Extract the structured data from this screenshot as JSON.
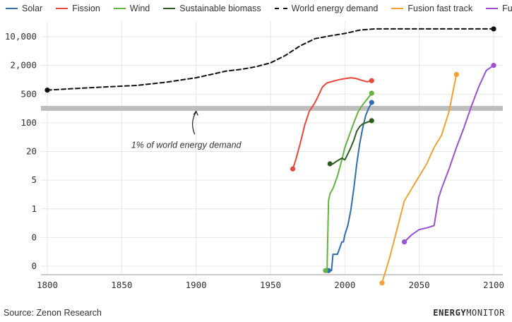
{
  "chart_data": {
    "type": "line",
    "title": "",
    "xlabel": "",
    "ylabel": "",
    "x_ticks": [
      "1800",
      "1850",
      "1900",
      "1950",
      "2000",
      "2050",
      "2100"
    ],
    "xlim": [
      1800,
      2102
    ],
    "y_ticks": [
      "10,000",
      "2,000",
      "500",
      "100",
      "20",
      "5",
      "1",
      "0",
      "0"
    ],
    "y_scale": "log, one labelled step per tick (10,000 / 2,000 / 500 / 100 / 20 / 5 / 1 / 0.2 / 0.04, shown as 0)",
    "grid": "vertical and horizontal light gray gridlines",
    "legend_position": "top",
    "series": [
      {
        "name": "Solar",
        "color": "#2f6db0",
        "dashed": false,
        "marker_last": true,
        "x": [
          1989,
          1990,
          1991,
          1992,
          1995,
          1998,
          1999,
          2000,
          2002,
          2004,
          2006,
          2008,
          2010,
          2012,
          2014,
          2016,
          2018
        ],
        "y": [
          0.02,
          0.02,
          0.02,
          0.05,
          0.05,
          0.1,
          0.1,
          0.15,
          0.25,
          0.6,
          2,
          8,
          25,
          60,
          120,
          180,
          250
        ]
      },
      {
        "name": "Fission",
        "color": "#e8473a",
        "dashed": false,
        "marker_last": true,
        "x": [
          1965,
          1967,
          1970,
          1973,
          1976,
          1980,
          1983,
          1985,
          1988,
          1992,
          1996,
          2000,
          2004,
          2008,
          2012,
          2015,
          2018
        ],
        "y": [
          6,
          10,
          25,
          70,
          150,
          250,
          420,
          600,
          750,
          820,
          900,
          950,
          1000,
          950,
          850,
          800,
          850
        ]
      },
      {
        "name": "Wind",
        "color": "#64b33f",
        "dashed": false,
        "marker_last": true,
        "x": [
          1987,
          1988,
          1989,
          1990,
          1992,
          1995,
          1998,
          2000,
          2003,
          2006,
          2009,
          2012,
          2015,
          2018
        ],
        "y": [
          0.02,
          0.02,
          1,
          1.5,
          2,
          4,
          10,
          20,
          40,
          80,
          150,
          220,
          300,
          420
        ]
      },
      {
        "name": "Sustainable biomass",
        "color": "#2d5d1e",
        "dashed": false,
        "marker_last": false,
        "x": [
          1990,
          1992,
          1994,
          1996,
          1998,
          2000,
          2002,
          2004,
          2006,
          2008,
          2010,
          2012,
          2014,
          2016,
          2018
        ],
        "y": [
          8,
          8,
          9,
          10,
          11,
          10,
          14,
          20,
          30,
          50,
          65,
          75,
          80,
          85,
          90
        ]
      },
      {
        "name": "World energy demand",
        "color": "#111111",
        "dashed": true,
        "marker_last": true,
        "x": [
          1800,
          1820,
          1840,
          1860,
          1880,
          1900,
          1910,
          1920,
          1930,
          1940,
          1950,
          1960,
          1970,
          1980,
          1990,
          2000,
          2010,
          2020,
          2050,
          2100
        ],
        "y": [
          500,
          550,
          600,
          650,
          780,
          1000,
          1200,
          1450,
          1600,
          1850,
          2300,
          3500,
          6000,
          9000,
          10500,
          12000,
          14500,
          15500,
          15500,
          15500
        ]
      },
      {
        "name": "Fusion fast track",
        "color": "#f5a033",
        "dashed": false,
        "marker_last": true,
        "x": [
          2025,
          2030,
          2035,
          2040,
          2045,
          2050,
          2055,
          2060,
          2065,
          2070,
          2075
        ],
        "y": [
          0.01,
          0.04,
          0.2,
          1,
          2,
          4,
          8,
          20,
          40,
          150,
          1200
        ]
      },
      {
        "name": "Fusion",
        "color": "#9b4fd1",
        "dashed": false,
        "marker_last": true,
        "x": [
          2040,
          2045,
          2050,
          2055,
          2060,
          2063,
          2065,
          2070,
          2075,
          2080,
          2085,
          2090,
          2095,
          2100
        ],
        "y": [
          0.1,
          0.15,
          0.2,
          0.22,
          0.25,
          1.2,
          2,
          6,
          20,
          60,
          200,
          600,
          1500,
          2000
        ]
      }
    ],
    "band": {
      "y": 180,
      "color": "#bdbdbd"
    },
    "first_points": {
      "Fission": true,
      "Wind": true,
      "Sustainable biomass": true,
      "Solar": true,
      "World energy demand": true,
      "Fusion fast track": true,
      "Fusion": true
    },
    "annotation": {
      "text": "1% of world energy demand",
      "x": 1900,
      "y": 180
    }
  },
  "footer": {
    "source": "Source: Zenon Research",
    "brand_bold": "ENERGY",
    "brand_thin": "MONITOR"
  }
}
